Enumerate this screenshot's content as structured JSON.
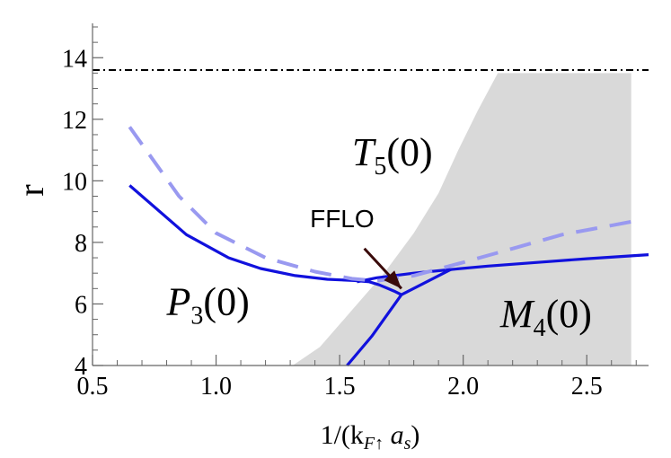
{
  "chart_data": {
    "type": "line",
    "title": "",
    "xlabel": {
      "main": "1/(k",
      "sub_f": "F",
      "arrow": "↑",
      "a": " a",
      "sub_s": "s",
      "close": ")"
    },
    "ylabel": "r",
    "xlim": [
      0.5,
      2.75
    ],
    "ylim": [
      4,
      15
    ],
    "x_ticks": [
      0.5,
      1.0,
      1.5,
      2.0,
      2.5
    ],
    "x_tick_labels": [
      "0.5",
      "1.0",
      "1.5",
      "2.0",
      "2.5"
    ],
    "y_ticks": [
      4,
      6,
      8,
      10,
      12,
      14
    ],
    "y_tick_labels": [
      "4",
      "6",
      "8",
      "10",
      "12",
      "14"
    ],
    "grid": false,
    "colors": {
      "solid": "#1111dd",
      "dashed": "#9999f0",
      "shade": "#d9d9d9",
      "arrow": "#3a0a0a",
      "hline": "#000000"
    },
    "hline": {
      "y": 13.6,
      "style": "dash-dot"
    },
    "shaded_region": [
      [
        1.31,
        4.0
      ],
      [
        1.42,
        4.6
      ],
      [
        1.55,
        5.8
      ],
      [
        1.68,
        7.0
      ],
      [
        1.8,
        8.3
      ],
      [
        1.9,
        9.6
      ],
      [
        1.98,
        11.0
      ],
      [
        2.06,
        12.3
      ],
      [
        2.14,
        13.5
      ],
      [
        2.68,
        13.5
      ],
      [
        2.68,
        4.0
      ]
    ],
    "series": [
      {
        "style": "solid",
        "x": [
          0.65,
          0.88,
          1.05,
          1.18,
          1.32,
          1.45,
          1.56,
          1.62,
          1.66,
          1.69,
          1.72,
          1.75
        ],
        "y": [
          9.85,
          8.25,
          7.5,
          7.15,
          6.92,
          6.8,
          6.76,
          6.72,
          6.62,
          6.52,
          6.42,
          6.3
        ]
      },
      {
        "style": "solid",
        "x": [
          1.57,
          1.65,
          1.8,
          1.95,
          2.1,
          2.3,
          2.5,
          2.75
        ],
        "y": [
          6.72,
          6.85,
          7.0,
          7.12,
          7.23,
          7.35,
          7.47,
          7.6
        ]
      },
      {
        "style": "solid",
        "x": [
          1.75,
          1.95
        ],
        "y": [
          6.3,
          7.12
        ]
      },
      {
        "style": "solid",
        "x": [
          1.53,
          1.63,
          1.75
        ],
        "y": [
          4.0,
          4.95,
          6.3
        ]
      },
      {
        "style": "dashed",
        "x": [
          0.65,
          0.85,
          1.0,
          1.2,
          1.4,
          1.55,
          1.65,
          1.8,
          2.0,
          2.2,
          2.4,
          2.7
        ],
        "y": [
          11.75,
          9.5,
          8.3,
          7.5,
          7.05,
          6.82,
          6.75,
          6.92,
          7.35,
          7.8,
          8.25,
          8.7
        ]
      }
    ],
    "annotations": [
      {
        "id": "t5",
        "main": "T",
        "sub": "5",
        "rest": "(0)",
        "x": 1.55,
        "y": 10.5
      },
      {
        "id": "p3",
        "main": "P",
        "sub": "3",
        "rest": "(0)",
        "x": 0.8,
        "y": 5.65
      },
      {
        "id": "m4",
        "main": "M",
        "sub": "4",
        "rest": "(0)",
        "x": 2.15,
        "y": 5.25
      }
    ],
    "arrow_annotation": {
      "text": "FFLO",
      "text_x": 1.38,
      "text_y": 8.5,
      "from": [
        1.6,
        7.8
      ],
      "to": [
        1.75,
        6.5
      ]
    }
  }
}
